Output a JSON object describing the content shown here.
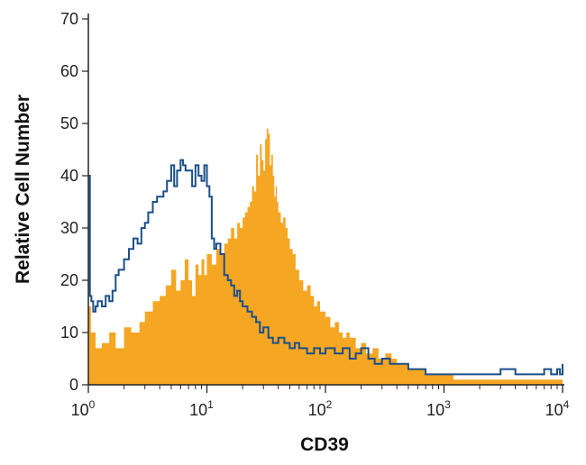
{
  "chart_data": {
    "type": "area",
    "xlabel": "CD39",
    "ylabel": "Relative Cell Number",
    "xscale": "log",
    "xlim": [
      1,
      10000
    ],
    "ylim": [
      0,
      70
    ],
    "y_ticks": [
      0,
      10,
      20,
      30,
      40,
      50,
      60,
      70
    ],
    "x_ticks": [
      {
        "value": 1,
        "base": "10",
        "exp": "0"
      },
      {
        "value": 10,
        "base": "10",
        "exp": "1"
      },
      {
        "value": 100,
        "base": "10",
        "exp": "2"
      },
      {
        "value": 1000,
        "base": "10",
        "exp": "3"
      },
      {
        "value": 10000,
        "base": "10",
        "exp": "4"
      }
    ],
    "grid": false,
    "legend": "none",
    "series": [
      {
        "style": "filled",
        "color": "#f5a623",
        "x": [
          1,
          1.05,
          1.15,
          1.3,
          1.5,
          1.7,
          2,
          2.3,
          2.7,
          3,
          3.5,
          4,
          4.5,
          5,
          5.5,
          6,
          6.5,
          7,
          7.5,
          8,
          8.5,
          9,
          9.5,
          10,
          11,
          12,
          13,
          14,
          15,
          16,
          17,
          18,
          19,
          20,
          21,
          22,
          23,
          24,
          25,
          26,
          27,
          28,
          29,
          30,
          31,
          32,
          33,
          34,
          35,
          36,
          37,
          38,
          39,
          40,
          42,
          44,
          46,
          48,
          50,
          53,
          56,
          60,
          65,
          70,
          75,
          80,
          85,
          90,
          100,
          110,
          120,
          130,
          140,
          150,
          160,
          180,
          200,
          220,
          250,
          280,
          320,
          360,
          400,
          450,
          500,
          600,
          700,
          800,
          900,
          1000,
          1200,
          1400,
          1600,
          2000,
          2500,
          3000,
          3500,
          4000,
          5000,
          6000,
          7000,
          8000,
          9000,
          10000
        ],
        "y": [
          15,
          10,
          7,
          8,
          10,
          7,
          11,
          10,
          12,
          14,
          16,
          17,
          19,
          22,
          18,
          20,
          24,
          20,
          17,
          23,
          21,
          24,
          21,
          25,
          23,
          26,
          25,
          27,
          28,
          30,
          28,
          31,
          30,
          32,
          33,
          34,
          35,
          38,
          37,
          44,
          40,
          46,
          43,
          41,
          47,
          49,
          48,
          42,
          44,
          40,
          36,
          38,
          35,
          33,
          31,
          32,
          30,
          28,
          26,
          25,
          22,
          20,
          18,
          19,
          17,
          15,
          16,
          14,
          13,
          11,
          12,
          10,
          9,
          10,
          9,
          7,
          8,
          6,
          7,
          5,
          6,
          5,
          4,
          4,
          3,
          3,
          2,
          2,
          2,
          2,
          1,
          1,
          1,
          1,
          1,
          1,
          1,
          1,
          1,
          1,
          1,
          1,
          1,
          1
        ]
      },
      {
        "style": "outline",
        "color": "#1b4f8a",
        "x": [
          1,
          1.03,
          1.06,
          1.1,
          1.15,
          1.2,
          1.3,
          1.4,
          1.5,
          1.6,
          1.7,
          1.8,
          2,
          2.2,
          2.4,
          2.6,
          2.8,
          3,
          3.2,
          3.5,
          3.8,
          4,
          4.3,
          4.6,
          5,
          5.3,
          5.6,
          6,
          6.3,
          6.6,
          7,
          7.5,
          8,
          8.5,
          9,
          9.5,
          10,
          10.5,
          11,
          11.5,
          12,
          13,
          14,
          15,
          16,
          17,
          18,
          19,
          20,
          22,
          24,
          26,
          28,
          30,
          33,
          36,
          40,
          45,
          50,
          55,
          60,
          70,
          80,
          90,
          100,
          120,
          140,
          160,
          180,
          200,
          230,
          260,
          300,
          350,
          400,
          500,
          600,
          700,
          800,
          1000,
          1200,
          1500,
          2000,
          2500,
          3000,
          4000,
          5000,
          6000,
          7000,
          8000,
          9000,
          9500,
          10000
        ],
        "y": [
          40,
          17,
          16,
          14,
          15,
          16,
          15,
          17,
          16,
          18,
          21,
          22,
          24,
          26,
          28,
          27,
          30,
          31,
          33,
          35,
          36,
          36,
          37,
          39,
          42,
          38,
          41,
          43,
          42,
          41,
          41,
          38,
          42,
          40,
          39,
          42,
          38,
          36,
          28,
          26,
          27,
          25,
          21,
          20,
          19,
          17,
          18,
          16,
          15,
          14,
          13,
          12,
          10,
          11,
          9,
          8,
          9,
          8,
          7,
          8,
          7,
          6,
          7,
          6,
          7,
          6,
          7,
          5,
          6,
          7,
          5,
          4,
          5,
          4,
          4,
          3,
          3,
          2,
          2,
          2,
          2,
          2,
          2,
          2,
          3,
          2,
          2,
          2,
          3,
          2,
          3,
          2,
          4
        ]
      }
    ]
  }
}
